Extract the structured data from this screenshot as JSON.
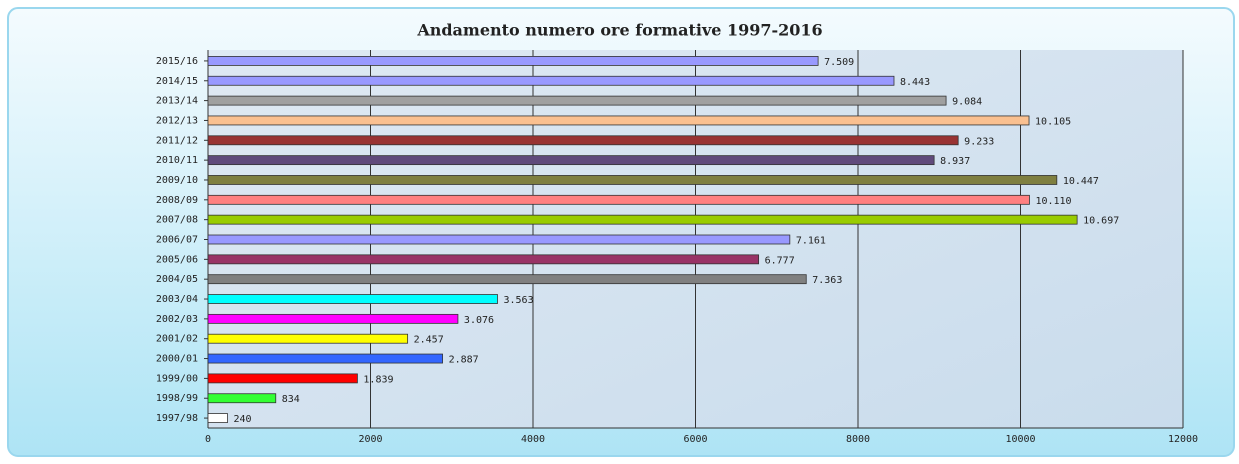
{
  "chart_data": {
    "type": "hbar",
    "title": "Andamento numero ore formative 1997-2016",
    "categories": [
      "2015/16",
      "2014/15",
      "2013/14",
      "2012/13",
      "2011/12",
      "2010/11",
      "2009/10",
      "2008/09",
      "2007/08",
      "2006/07",
      "2005/06",
      "2004/05",
      "2003/04",
      "2002/03",
      "2001/02",
      "2000/01",
      "1999/00",
      "1998/99",
      "1997/98"
    ],
    "values": [
      7509,
      8443,
      9084,
      10105,
      9233,
      8937,
      10447,
      10110,
      10697,
      7161,
      6777,
      7363,
      3563,
      3076,
      2457,
      2887,
      1839,
      834,
      240
    ],
    "value_labels": [
      "7.509",
      "8.443",
      "9.084",
      "10.105",
      "9.233",
      "8.937",
      "10.447",
      "10.110",
      "10.697",
      "7.161",
      "6.777",
      "7.363",
      "3.563",
      "3.076",
      "2.457",
      "2.887",
      "1.839",
      "834",
      "240"
    ],
    "colors": [
      "#9999ff",
      "#9999ff",
      "#a0a0a0",
      "#fac090",
      "#993333",
      "#604a7b",
      "#7f7f40",
      "#ff8080",
      "#99cc00",
      "#9999ff",
      "#993366",
      "#808080",
      "#00ffff",
      "#ff00ff",
      "#ffff00",
      "#3366ff",
      "#ff0000",
      "#33ff33",
      "#ffffff"
    ],
    "xlim": [
      0,
      12000
    ],
    "xticks": [
      0,
      2000,
      4000,
      6000,
      8000,
      10000,
      12000
    ],
    "grid": true
  }
}
